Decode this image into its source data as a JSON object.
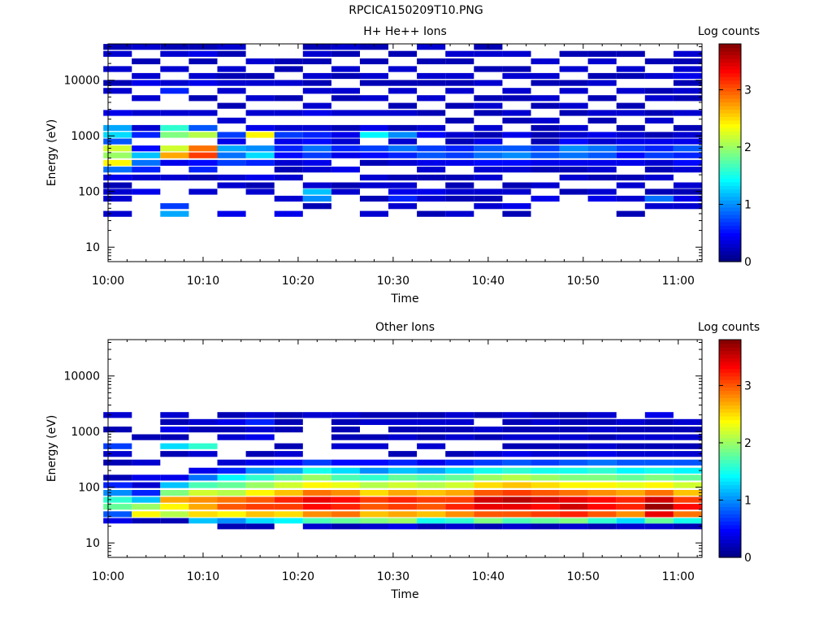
{
  "figure": {
    "title": "RPCICA150209T10.PNG"
  },
  "chart_data": [
    {
      "type": "heatmap",
      "title": "H+ He++ Ions",
      "xlabel": "Time",
      "ylabel": "Energy (eV)",
      "x_ticks": [
        "10:00",
        "10:10",
        "10:20",
        "10:30",
        "10:40",
        "10:50",
        "11:00"
      ],
      "y_ticks": [
        "10",
        "100",
        "1000",
        "10000"
      ],
      "y_scale": "log",
      "ylim": [
        5.5,
        45000
      ],
      "colorbar": {
        "label": "Log counts",
        "range": [
          0,
          3.8
        ],
        "ticks": [
          "0",
          "1",
          "2",
          "3"
        ]
      },
      "time_bins": [
        "10:01",
        "10:04",
        "10:07",
        "10:10",
        "10:13",
        "10:16",
        "10:19",
        "10:22",
        "10:25",
        "10:28",
        "10:31",
        "10:34",
        "10:37",
        "10:40",
        "10:43",
        "10:46",
        "10:49",
        "10:52",
        "10:55",
        "10:58",
        "11:01"
      ],
      "energy_bins": [
        25,
        40,
        55,
        75,
        100,
        130,
        180,
        250,
        330,
        450,
        600,
        800,
        1050,
        1400,
        1900,
        2600,
        3500,
        4800,
        6500,
        9000,
        12000,
        16000,
        22000,
        30000,
        40000
      ],
      "z": [
        [
          0,
          0.3,
          0,
          0.3,
          0.3,
          0.2,
          0.4,
          0.9,
          2.4,
          2.0,
          2.2,
          0.8,
          1.3,
          1.1,
          0,
          0.4,
          0,
          0,
          0.3,
          0.2,
          0,
          0.3,
          0,
          0.3,
          0.2
        ],
        [
          0,
          0,
          0,
          0,
          0.4,
          0,
          0.3,
          0.6,
          0.9,
          1.2,
          0.5,
          0,
          0.6,
          0.3,
          0,
          0.3,
          0,
          0.3,
          0,
          0.4,
          0.3,
          0,
          0.2,
          0,
          0.3
        ],
        [
          0,
          1.1,
          0.7,
          0,
          0,
          0,
          0.3,
          0,
          0.4,
          2.7,
          2.2,
          0,
          1.9,
          1.6,
          0,
          0.3,
          0,
          0,
          0.6,
          0.3,
          0,
          0.3,
          0,
          0.3,
          0.2
        ],
        [
          0,
          0,
          0,
          0,
          0.3,
          0,
          0.2,
          0.6,
          0.5,
          3.1,
          2.9,
          0,
          2.1,
          0.8,
          0,
          0.3,
          0,
          0.2,
          0,
          0.4,
          0.3,
          0,
          0.2,
          0.4,
          0.2
        ],
        [
          0,
          0.4,
          0,
          0,
          0,
          0.3,
          0.3,
          0,
          0.7,
          0.9,
          1.1,
          0.4,
          0.7,
          0,
          0.3,
          0,
          0.2,
          0,
          0.3,
          0.3,
          0.2,
          0.3,
          0,
          0.2,
          0.3
        ],
        [
          0,
          0,
          0,
          0,
          0.3,
          0.2,
          0.4,
          0,
          0.6,
          1.3,
          1.0,
          0,
          2.4,
          0.4,
          0,
          0.3,
          0,
          0.3,
          0,
          0.3,
          0.2,
          0,
          0.3,
          0,
          0
        ],
        [
          0,
          0.4,
          0,
          0.3,
          0,
          0,
          0.3,
          0.2,
          0.3,
          0.5,
          0.6,
          0.4,
          0.7,
          0.3,
          0,
          0.3,
          0,
          0.2,
          0,
          0.3,
          0,
          0.2,
          0.2,
          0,
          0
        ],
        [
          0,
          0,
          0.2,
          1.0,
          1.2,
          0.3,
          0,
          0.3,
          0.4,
          0.7,
          0.9,
          0.5,
          0.6,
          0.3,
          0,
          0.4,
          0.3,
          0,
          0.3,
          0.2,
          0.3,
          0,
          0.2,
          0.3,
          0.2
        ],
        [
          0,
          0,
          0,
          0,
          0.3,
          0.2,
          0,
          0.4,
          0,
          0.4,
          0.6,
          0.3,
          0.4,
          0.2,
          0,
          0.3,
          0,
          0.2,
          0.3,
          0,
          0.2,
          0.3,
          0,
          0.2,
          0.3
        ],
        [
          0,
          0.3,
          0,
          0.2,
          0,
          0.3,
          0.3,
          0,
          0.2,
          0.5,
          0.7,
          0,
          1.4,
          0.4,
          0,
          0.3,
          0,
          0.3,
          0,
          0.2,
          0.3,
          0,
          0.2,
          0,
          0.2
        ],
        [
          0,
          0,
          0.3,
          0.6,
          0.4,
          0.3,
          0.2,
          0,
          0.3,
          0.6,
          0.9,
          0.3,
          1.0,
          0.2,
          0,
          0.3,
          0.2,
          0,
          0.3,
          0.2,
          0,
          0.3,
          0,
          0.2,
          0
        ],
        [
          0,
          0.2,
          0,
          0.3,
          0.4,
          0,
          0.2,
          0.3,
          0.4,
          0.8,
          0.7,
          0,
          0.5,
          0.3,
          0,
          0.2,
          0,
          0.3,
          0,
          0.2,
          0.3,
          0,
          0.2,
          0,
          0.3
        ],
        [
          0,
          0.3,
          0,
          0.2,
          0.3,
          0.2,
          0.2,
          0,
          0.4,
          0.7,
          0.6,
          0.2,
          0.3,
          0,
          0.2,
          0,
          0.2,
          0,
          0.3,
          0.2,
          0.3,
          0,
          0.2,
          0.3,
          0
        ],
        [
          0,
          0,
          0.3,
          0.2,
          0.3,
          0,
          0.3,
          0.3,
          0.5,
          0.9,
          0.8,
          0.4,
          0.2,
          0.3,
          0,
          0.2,
          0.3,
          0.2,
          0,
          0.3,
          0,
          0.2,
          0,
          0.3,
          0.2
        ],
        [
          0,
          0.2,
          0.4,
          0,
          0.3,
          0.2,
          0,
          0.3,
          0.5,
          1.0,
          0.8,
          0,
          0.4,
          0,
          0.2,
          0.3,
          0,
          0.2,
          0.3,
          0,
          0.3,
          0.2,
          0,
          0.3,
          0
        ],
        [
          0,
          0,
          0,
          0.4,
          0,
          0.3,
          0,
          0.2,
          0.4,
          0.8,
          0.7,
          0.2,
          0.2,
          0.2,
          0.3,
          0,
          0.2,
          0.3,
          0,
          0.2,
          0.3,
          0,
          0.3,
          0,
          0
        ],
        [
          0,
          0,
          0,
          0,
          0.2,
          0,
          0.3,
          0.2,
          0.4,
          0.9,
          1.0,
          0.5,
          0.3,
          0.3,
          0,
          0.2,
          0.3,
          0,
          0.3,
          0.2,
          0,
          0.3,
          0,
          0.2,
          0
        ],
        [
          0,
          0,
          0,
          0.4,
          0.3,
          0,
          0.2,
          0.3,
          0.4,
          0.8,
          0.9,
          0.3,
          0.4,
          0,
          0.2,
          0.3,
          0,
          0.2,
          0,
          0.3,
          0.2,
          0,
          0.3,
          0.2,
          0
        ],
        [
          0,
          0.2,
          0,
          0.3,
          0,
          0.3,
          0.2,
          0,
          0.4,
          0.5,
          0.7,
          0.4,
          0.3,
          0.2,
          0,
          0.3,
          0.2,
          0,
          0.3,
          0,
          0.2,
          0.3,
          0,
          0.2,
          0
        ],
        [
          0,
          0,
          0.3,
          0.9,
          0.2,
          0,
          0.3,
          0.2,
          0.3,
          0.7,
          0.6,
          0.4,
          0.2,
          0,
          0.3,
          0.2,
          0,
          0.3,
          0.2,
          0,
          0.3,
          0,
          0.2,
          0,
          0
        ],
        [
          0,
          0,
          0.3,
          0.4,
          0.2,
          0.3,
          0,
          0.3,
          0.5,
          0.6,
          0.8,
          0.4,
          0.3,
          0.2,
          0,
          0.3,
          0,
          0.2,
          0.3,
          0.2,
          0.4,
          0.3,
          0.2,
          0.3,
          0
        ]
      ]
    },
    {
      "type": "heatmap",
      "title": "Other Ions",
      "xlabel": "Time",
      "ylabel": "Energy (eV)",
      "x_ticks": [
        "10:00",
        "10:10",
        "10:20",
        "10:30",
        "10:40",
        "10:50",
        "11:00"
      ],
      "y_ticks": [
        "10",
        "100",
        "1000",
        "10000"
      ],
      "y_scale": "log",
      "ylim": [
        5.5,
        45000
      ],
      "colorbar": {
        "label": "Log counts",
        "range": [
          0,
          3.8
        ],
        "ticks": [
          "0",
          "1",
          "2",
          "3"
        ]
      },
      "time_bins": [
        "10:01",
        "10:04",
        "10:07",
        "10:10",
        "10:13",
        "10:16",
        "10:19",
        "10:22",
        "10:25",
        "10:28",
        "10:31",
        "10:34",
        "10:37",
        "10:40",
        "10:43",
        "10:46",
        "10:49",
        "10:52",
        "10:55",
        "10:58",
        "11:01"
      ],
      "energy_bins": [
        10,
        20,
        25,
        33,
        45,
        60,
        80,
        110,
        150,
        200,
        280,
        400,
        550,
        800,
        1100,
        1500,
        2000
      ],
      "z": [
        [
          0,
          0,
          0.4,
          0.8,
          1.8,
          1.6,
          1.0,
          0.6,
          0.2,
          0,
          0.2,
          0.3,
          0.7,
          0,
          0.2,
          0,
          0.3
        ],
        [
          0,
          0,
          0.2,
          2.4,
          2.0,
          1.2,
          0.6,
          0.3,
          0.4,
          0,
          0.3,
          0,
          0,
          0.2,
          0,
          0,
          0
        ],
        [
          0,
          0,
          0.2,
          2.1,
          2.4,
          2.7,
          1.9,
          1.2,
          0.4,
          0,
          0,
          0.2,
          1.3,
          0.2,
          0.4,
          0.2,
          0.3
        ],
        [
          0,
          0,
          1.2,
          2.5,
          2.7,
          2.8,
          2.2,
          1.7,
          0.9,
          0.4,
          0,
          0.3,
          1.6,
          0,
          0.2,
          0.3,
          0
        ],
        [
          0,
          0.2,
          1.0,
          2.4,
          3.0,
          2.9,
          2.1,
          1.8,
          1.4,
          0.6,
          0.3,
          0,
          0,
          0.3,
          0.2,
          0.4,
          0.2
        ],
        [
          0,
          0.2,
          1.3,
          2.6,
          3.1,
          3.0,
          2.4,
          2.0,
          1.6,
          1.0,
          0.4,
          0.2,
          0,
          0.4,
          0.3,
          0.6,
          0.3
        ],
        [
          0,
          0,
          1.4,
          2.5,
          3.1,
          3.2,
          2.6,
          2.2,
          1.8,
          1.1,
          0.5,
          0.3,
          0.2,
          0,
          0.2,
          0.2,
          0.2
        ],
        [
          0,
          0.3,
          1.7,
          2.8,
          3.3,
          3.4,
          2.9,
          2.4,
          2.0,
          1.5,
          0.7,
          0,
          0,
          0,
          0,
          0,
          0.3
        ],
        [
          0,
          0.2,
          1.8,
          2.9,
          3.2,
          3.3,
          2.8,
          2.3,
          1.7,
          1.3,
          0.5,
          0,
          0.3,
          0.2,
          0.2,
          0.2,
          0.3
        ],
        [
          0,
          0.3,
          1.9,
          2.6,
          3.0,
          3.1,
          2.5,
          2.1,
          1.6,
          1.0,
          0.5,
          0,
          0.3,
          0.2,
          0,
          0.3,
          0.2
        ],
        [
          0,
          0.4,
          2.0,
          2.7,
          3.1,
          3.2,
          2.7,
          2.2,
          1.8,
          1.2,
          0.6,
          0.2,
          0,
          0.3,
          0.2,
          0.3,
          0.2
        ],
        [
          0,
          0.2,
          1.5,
          2.6,
          3.0,
          3.1,
          2.6,
          2.1,
          1.7,
          1.1,
          0.4,
          0,
          0.3,
          0.2,
          0.2,
          0.3,
          0.2
        ],
        [
          0,
          0.3,
          1.6,
          2.8,
          3.2,
          3.1,
          2.7,
          2.2,
          1.8,
          1.3,
          0.6,
          0.2,
          0,
          0.3,
          0.2,
          0.3,
          0.3
        ],
        [
          0,
          0.2,
          1.9,
          3.0,
          3.4,
          3.5,
          3.0,
          2.5,
          2.0,
          1.5,
          0.7,
          0.3,
          0,
          0.2,
          0.3,
          0,
          0.2
        ],
        [
          0,
          0.3,
          1.7,
          3.0,
          3.4,
          3.6,
          3.1,
          2.6,
          2.1,
          1.6,
          0.8,
          0.4,
          0.2,
          0.3,
          0.2,
          0.2,
          0.3
        ],
        [
          0,
          0.2,
          1.8,
          3.1,
          3.3,
          3.5,
          3.0,
          2.5,
          2.0,
          1.5,
          0.7,
          0.3,
          0.2,
          0.3,
          0.2,
          0.3,
          0.2
        ],
        [
          0,
          0.3,
          1.9,
          3.2,
          3.5,
          3.4,
          2.9,
          2.4,
          1.9,
          1.5,
          0.8,
          0.3,
          0.2,
          0.3,
          0.2,
          0.2,
          0.2
        ],
        [
          0,
          0.2,
          1.6,
          3.0,
          3.3,
          3.3,
          2.8,
          2.4,
          1.9,
          1.6,
          0.9,
          0.4,
          0.3,
          0.2,
          0.3,
          0.2,
          0.3
        ],
        [
          0,
          0.3,
          1.3,
          2.8,
          3.2,
          3.2,
          2.7,
          2.3,
          1.8,
          1.4,
          0.8,
          0.3,
          0.2,
          0.3,
          0.2,
          0.3,
          0
        ],
        [
          0,
          0.3,
          1.8,
          3.4,
          3.7,
          3.5,
          2.9,
          2.4,
          1.9,
          1.5,
          0.8,
          0.3,
          0.2,
          0.3,
          0.2,
          0.2,
          0.4
        ],
        [
          0,
          0.2,
          1.5,
          2.9,
          3.3,
          3.1,
          2.6,
          2.2,
          1.8,
          1.4,
          0.8,
          0.3,
          0.2,
          0.3,
          0.2,
          0.3,
          0
        ]
      ]
    }
  ]
}
